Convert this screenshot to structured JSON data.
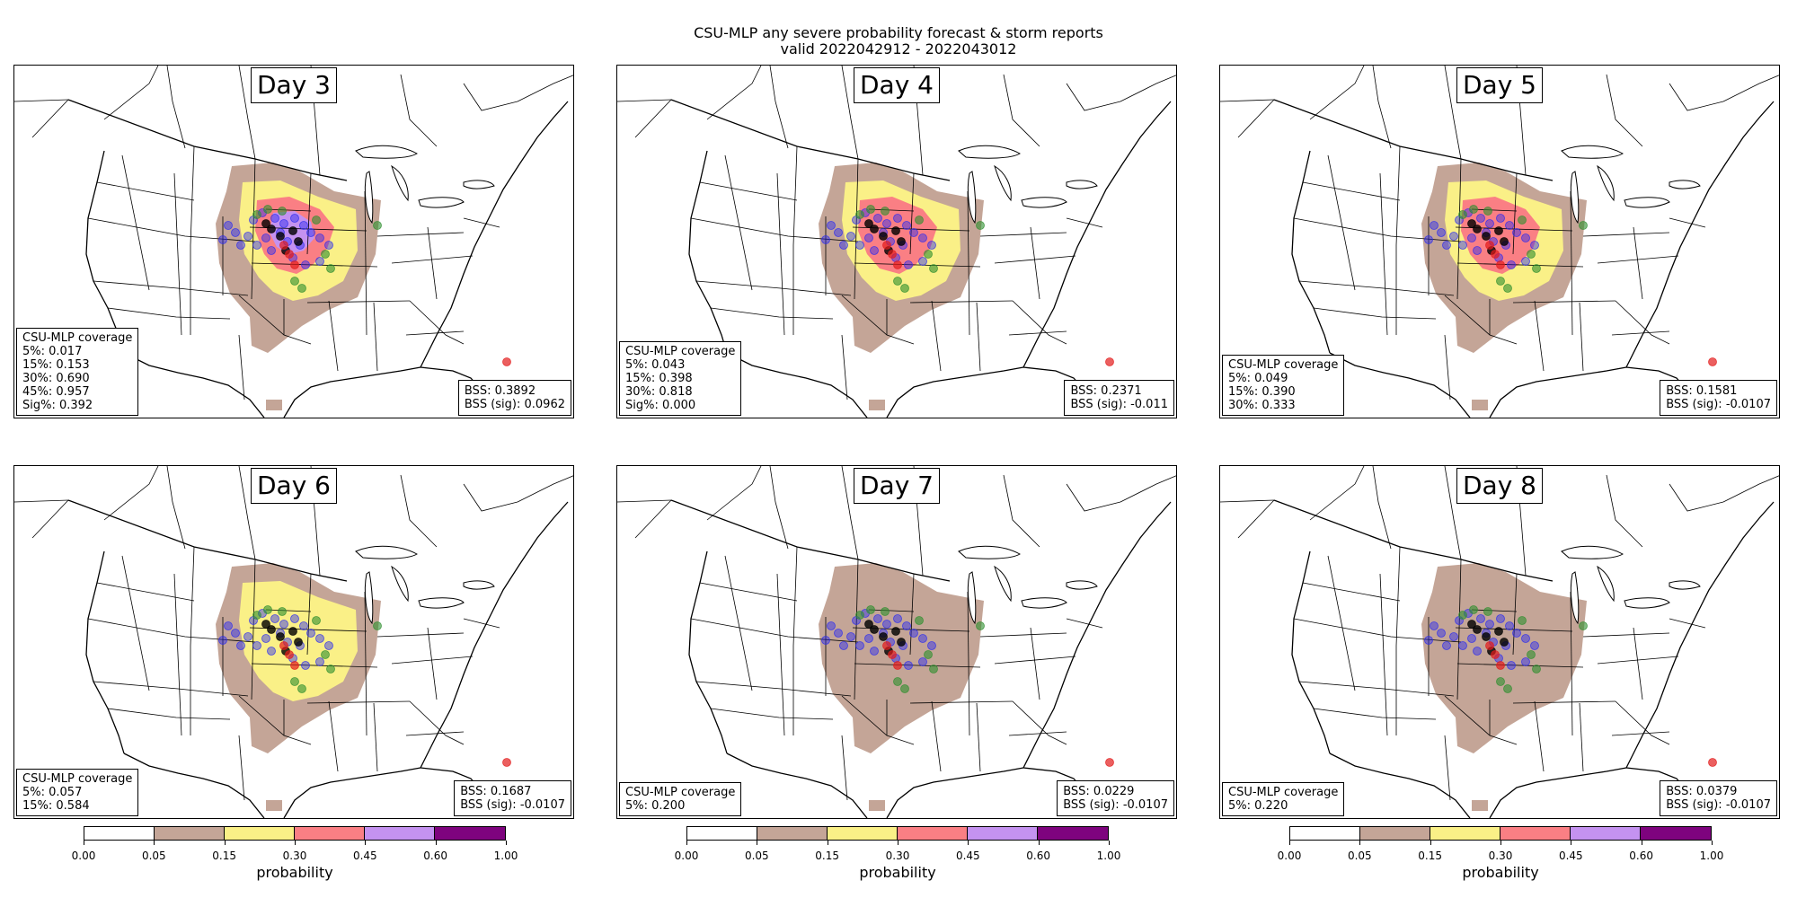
{
  "title_line1": "CSU-MLP any severe probability forecast & storm reports",
  "title_line2": "valid 2022042912 - 2022043012",
  "colors": {
    "p05": "#c4a597",
    "p15": "#faf087",
    "p30": "#fa7f84",
    "p45": "#c492f0",
    "p60": "#7e037e",
    "report_hail": "#2a2af0",
    "report_wind": "#2f8f2f",
    "report_tornado": "#e21b1b",
    "report_sig": "#000000"
  },
  "panels": [
    {
      "day": "Day 3",
      "coverage_title": "CSU-MLP coverage",
      "coverage": [
        "5%: 0.017",
        "15%: 0.153",
        "30%: 0.690",
        "45%: 0.957",
        "Sig%: 0.392"
      ],
      "bss": "BSS: 0.3892",
      "bss_sig": "BSS (sig): 0.0962",
      "max_level": 4
    },
    {
      "day": "Day 4",
      "coverage_title": "CSU-MLP coverage",
      "coverage": [
        "5%: 0.043",
        "15%: 0.398",
        "30%: 0.818",
        "Sig%: 0.000"
      ],
      "bss": "BSS: 0.2371",
      "bss_sig": "BSS (sig): -0.011",
      "max_level": 3
    },
    {
      "day": "Day 5",
      "coverage_title": "CSU-MLP coverage",
      "coverage": [
        "5%: 0.049",
        "15%: 0.390",
        "30%: 0.333"
      ],
      "bss": "BSS: 0.1581",
      "bss_sig": "BSS (sig): -0.0107",
      "max_level": 3
    },
    {
      "day": "Day 6",
      "coverage_title": "CSU-MLP coverage",
      "coverage": [
        "5%: 0.057",
        "15%: 0.584"
      ],
      "bss": "BSS: 0.1687",
      "bss_sig": "BSS (sig): -0.0107",
      "max_level": 2
    },
    {
      "day": "Day 7",
      "coverage_title": "CSU-MLP coverage",
      "coverage": [
        "5%: 0.200"
      ],
      "bss": "BSS: 0.0229",
      "bss_sig": "BSS (sig): -0.0107",
      "max_level": 1
    },
    {
      "day": "Day 8",
      "coverage_title": "CSU-MLP coverage",
      "coverage": [
        "5%: 0.220"
      ],
      "bss": "BSS: 0.0379",
      "bss_sig": "BSS (sig): -0.0107",
      "max_level": 1
    }
  ],
  "colorbar": {
    "label": "probability",
    "ticks": [
      "0.00",
      "0.05",
      "0.15",
      "0.30",
      "0.45",
      "0.60",
      "1.00"
    ]
  }
}
